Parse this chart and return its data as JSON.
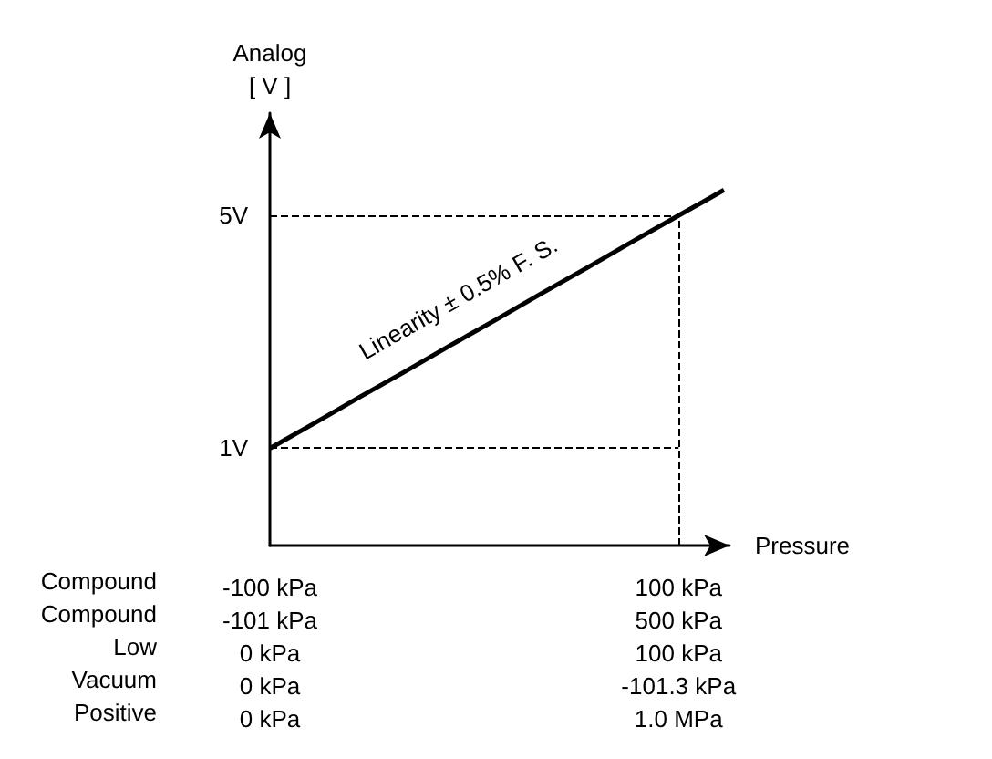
{
  "chart_data": {
    "type": "line",
    "ylabel": "Analog\n[ V ]",
    "xlabel": "Pressure",
    "categories": [
      "-100 kPa\n-101 kPa\n0 kPa\n0 kPa\n0 kPa",
      null,
      null,
      null,
      null,
      null,
      null,
      null,
      null,
      "100 kPa\n500 kPa\n100 kPa\n-101.3 kPa\n1.0 MPa",
      null
    ],
    "series": [
      {
        "color": "#000000",
        "values": [
          1,
          1.44,
          1.89,
          2.33,
          2.78,
          3.22,
          3.67,
          4.11,
          4.56,
          5,
          5.44
        ]
      }
    ],
    "ylim": [
      -0.67,
      6.76
    ],
    "yticks": [
      {
        "value": 1,
        "label": "1V"
      },
      {
        "value": 5,
        "label": "5V"
      }
    ],
    "ref_lines": [
      {
        "axis": "y",
        "value": 1,
        "line_style": "dashed",
        "color": "#000000"
      },
      {
        "axis": "y",
        "value": 5,
        "line_style": "dashed",
        "color": "#000000"
      },
      {
        "axis": "x",
        "value": "100 kPa\n500 kPa\n100 kPa\n-101.3 kPa\n1.0 MPa",
        "line_style": "dashed",
        "color": "#000000"
      }
    ],
    "annotations": [
      "Linearity ± 0.5% F. S.",
      "Compound",
      "Compound",
      "Low",
      "Vacuum",
      "Positive"
    ],
    "grid": false,
    "marker": "none",
    "line_style": "solid"
  }
}
